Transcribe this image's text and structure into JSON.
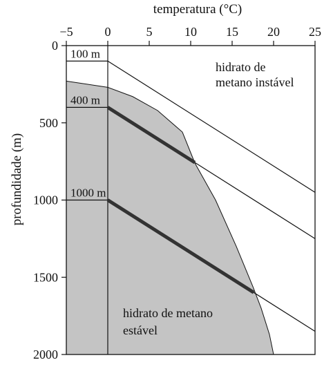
{
  "chart_data": {
    "type": "line",
    "xlabel": "temperatura (°C)",
    "ylabel": "profundidade (m)",
    "xlim": [
      -5,
      25
    ],
    "ylim": [
      0,
      2000
    ],
    "y_inverted": true,
    "x_axis_position": "top",
    "x_ticks": [
      -5,
      0,
      5,
      10,
      15,
      20,
      25
    ],
    "y_ticks": [
      0,
      500,
      1000,
      1500,
      2000
    ],
    "x_tick_labels": [
      "−5",
      "0",
      "5",
      "10",
      "15",
      "20",
      "25"
    ],
    "y_tick_labels": [
      "0",
      "500",
      "1000",
      "1500",
      "2000"
    ],
    "stability_boundary": {
      "description_label": "hidrato de metano estável",
      "points": [
        [
          -5,
          230
        ],
        [
          0,
          270
        ],
        [
          3,
          330
        ],
        [
          6,
          420
        ],
        [
          9,
          560
        ],
        [
          10.5,
          760
        ],
        [
          13,
          1000
        ],
        [
          15.5,
          1300
        ],
        [
          17.5,
          1560
        ],
        [
          18.5,
          1700
        ],
        [
          19.5,
          1870
        ],
        [
          20,
          2000
        ]
      ]
    },
    "series": [
      {
        "name": "100 m",
        "x": [
          -5,
          0,
          25
        ],
        "y": [
          100,
          100,
          950
        ],
        "dissociation_x": null
      },
      {
        "name": "400 m",
        "x": [
          -5,
          0,
          25
        ],
        "y": [
          400,
          400,
          1250
        ],
        "dissociation_x": 10.5
      },
      {
        "name": "1000 m",
        "x": [
          -5,
          0,
          25
        ],
        "y": [
          1000,
          1000,
          1850
        ],
        "dissociation_x": 17.6
      }
    ],
    "annotations": [
      {
        "text_line1": "hidrato de",
        "text_line2": "metano instável",
        "region": "top-right"
      },
      {
        "text_line1": "hidrato de metano",
        "text_line2": "estável",
        "region": "bottom-center"
      }
    ],
    "colors": {
      "stable_region_fill": "#c4c4c4",
      "line": "#111111",
      "thick_line": "#333333"
    }
  }
}
